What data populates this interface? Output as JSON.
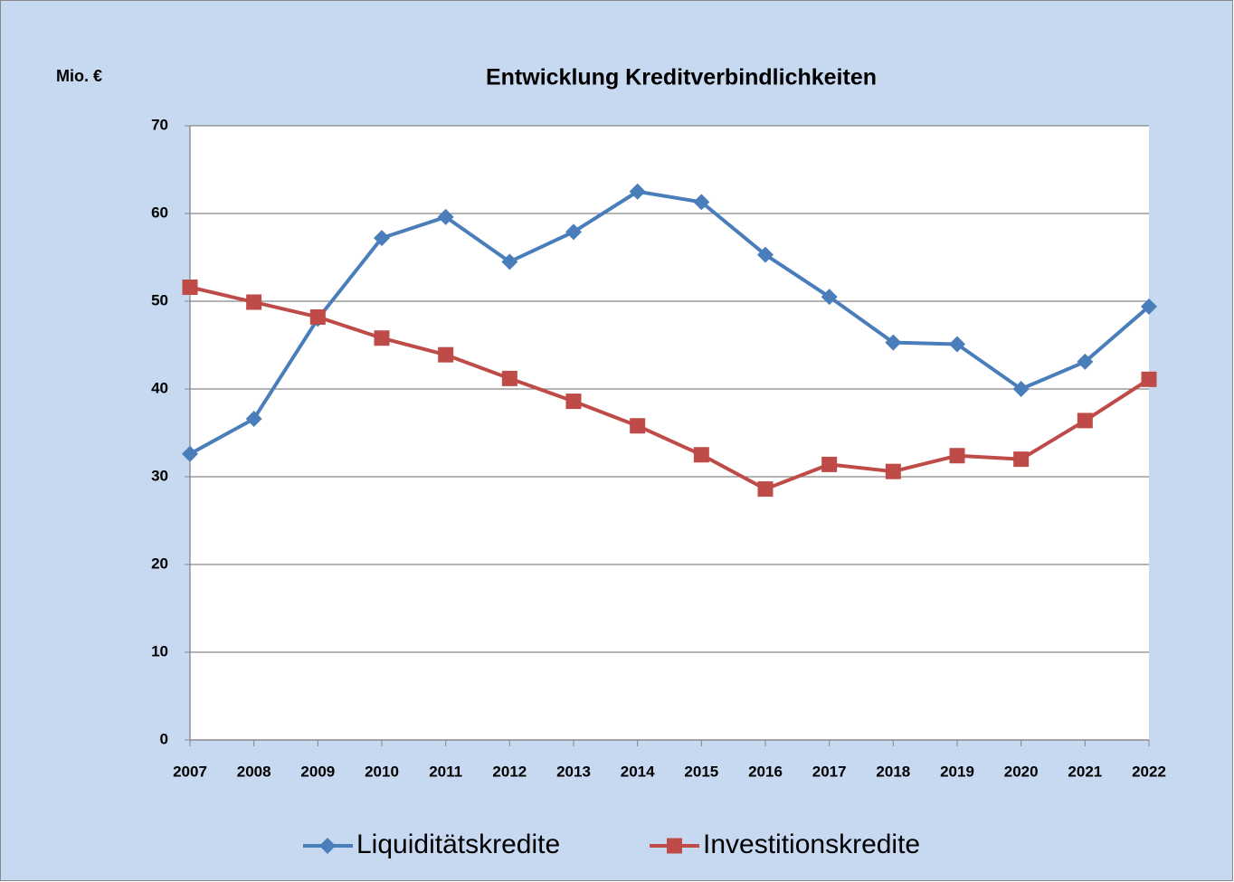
{
  "chart_data": {
    "type": "line",
    "title": "Entwicklung Kreditverbindlichkeiten",
    "y_label": "Mio. €",
    "categories": [
      "2007",
      "2008",
      "2009",
      "2010",
      "2011",
      "2012",
      "2013",
      "2014",
      "2015",
      "2016",
      "2017",
      "2018",
      "2019",
      "2020",
      "2021",
      "2022"
    ],
    "series": [
      {
        "name": "Liquiditätskredite",
        "color": "#4a7ebb",
        "marker": "diamond",
        "values": [
          32.6,
          36.6,
          48.0,
          57.2,
          59.6,
          54.5,
          57.9,
          62.5,
          61.3,
          55.3,
          50.5,
          45.3,
          45.1,
          40.0,
          43.1,
          49.4
        ]
      },
      {
        "name": "Investitionskredite",
        "color": "#be4b48",
        "marker": "square",
        "values": [
          51.6,
          49.9,
          48.2,
          45.8,
          43.9,
          41.2,
          38.6,
          35.8,
          32.5,
          28.6,
          31.4,
          30.6,
          32.4,
          32.0,
          36.4,
          41.1
        ]
      }
    ],
    "ylim": [
      0,
      70
    ],
    "yticks": [
      0,
      10,
      20,
      30,
      40,
      50,
      60,
      70
    ],
    "grid": true,
    "legend": "bottom"
  }
}
